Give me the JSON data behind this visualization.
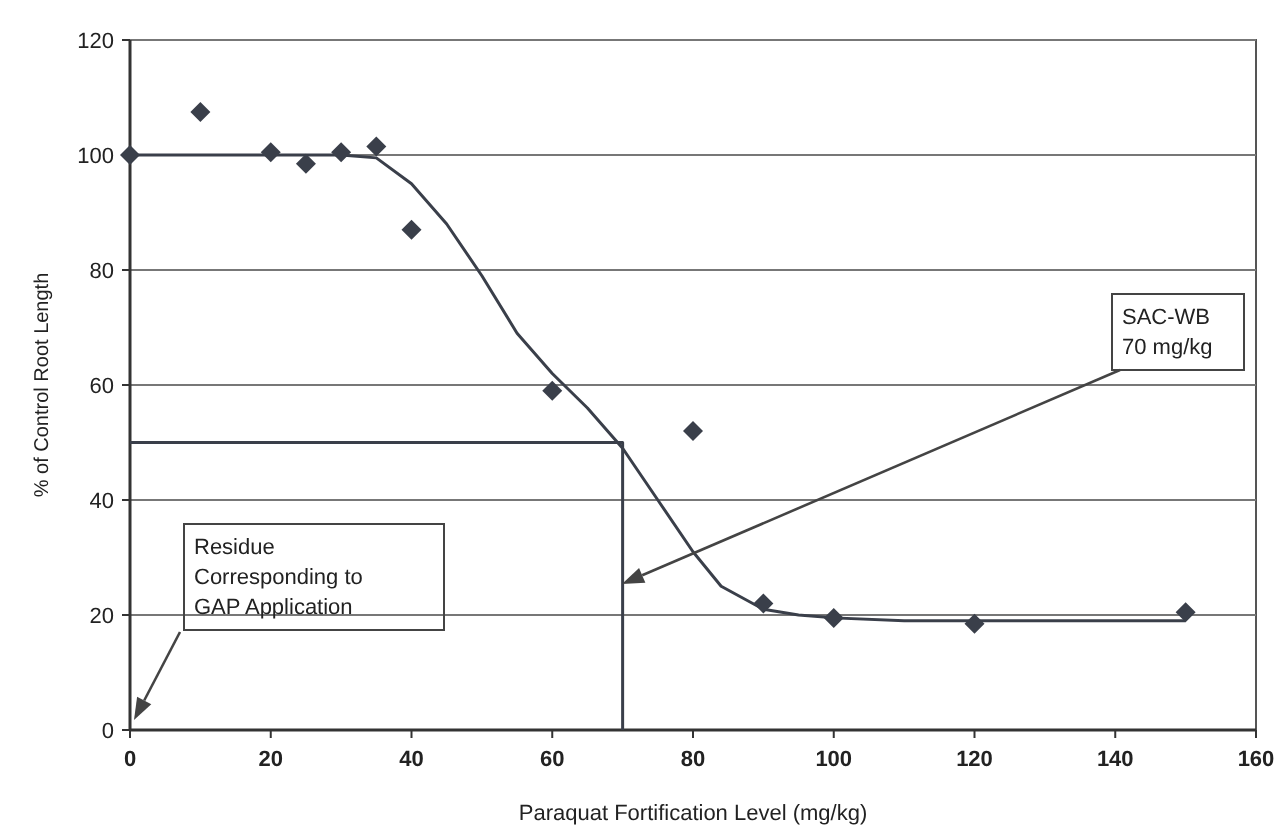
{
  "chart_data": {
    "type": "scatter",
    "xlabel": "Paraquat Fortification Level (mg/kg)",
    "ylabel": "% of Control Root Length",
    "xlim": [
      0,
      160
    ],
    "xticks": [
      0,
      20,
      40,
      60,
      80,
      100,
      120,
      140,
      160
    ],
    "ylim": [
      0,
      120
    ],
    "yticks": [
      0,
      20,
      40,
      60,
      80,
      100,
      120
    ],
    "grid": "y",
    "marker": "diamond",
    "series": [
      {
        "color": "#3a3f4a",
        "x": [
          0,
          10,
          20,
          25,
          30,
          35,
          40,
          60,
          80,
          90,
          100,
          120,
          150
        ],
        "values": [
          100,
          107.5,
          100.5,
          98.5,
          100.5,
          101.5,
          87,
          59,
          52,
          22,
          19.5,
          18.5,
          20.5
        ]
      },
      {
        "type": "line",
        "color": "#3a3f4a",
        "marker": "none",
        "line_style": "solid",
        "x": [
          0,
          10,
          20,
          30,
          35,
          40,
          45,
          50,
          55,
          60,
          65,
          70,
          75,
          80,
          84,
          90,
          95,
          100,
          110,
          120,
          130,
          140,
          150
        ],
        "values": [
          100,
          100,
          100,
          100,
          99.5,
          95,
          88,
          79,
          69,
          62,
          56,
          49,
          40,
          31,
          25,
          21,
          20,
          19.5,
          19,
          19,
          19,
          19,
          19
        ]
      },
      {
        "type": "line",
        "color": "#3a3f4a",
        "marker": "none",
        "line_style": "solid",
        "x": [
          0,
          70,
          70
        ],
        "values": [
          50,
          50,
          0
        ]
      }
    ],
    "annotations": [
      "Residue\nCorresponding to\nGAP Application",
      "SAC-WB\n70 mg/kg"
    ]
  }
}
